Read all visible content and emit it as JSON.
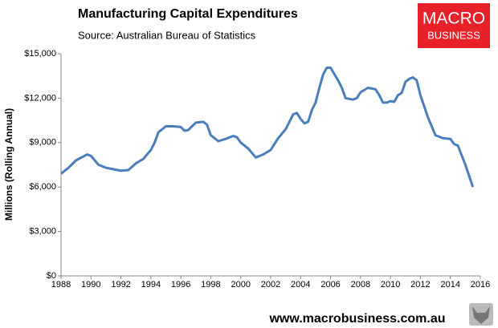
{
  "chart_data": {
    "type": "line",
    "title": "Manufacturing Capital Expenditures",
    "subtitle": "Source: Australian Bureau of Statistics",
    "y_label": "Millions (Rolling Annual)",
    "logo": [
      "MACRO",
      "BUSINESS"
    ],
    "footer": "www.macrobusiness.com.au",
    "x": [
      1988,
      1988.5,
      1989,
      1989.75,
      1990,
      1990.5,
      1991,
      1991.5,
      1992,
      1992.5,
      1993,
      1993.5,
      1994,
      1994.25,
      1994.5,
      1995,
      1995.5,
      1996,
      1996.25,
      1996.5,
      1997,
      1997.5,
      1997.75,
      1998,
      1998.5,
      1999,
      1999.5,
      1999.75,
      2000,
      2000.5,
      2001,
      2001.5,
      2002,
      2002.5,
      2003,
      2003.5,
      2003.75,
      2004,
      2004.25,
      2004.5,
      2004.75,
      2005,
      2005.25,
      2005.5,
      2005.75,
      2006,
      2006.5,
      2006.75,
      2007,
      2007.5,
      2007.75,
      2008,
      2008.5,
      2009,
      2009.25,
      2009.5,
      2009.75,
      2010,
      2010.25,
      2010.5,
      2010.75,
      2011,
      2011.25,
      2011.5,
      2011.75,
      2012,
      2012.5,
      2013,
      2013.5,
      2014,
      2014.25,
      2014.5,
      2015,
      2015.5
    ],
    "series": [
      {
        "name": "Manufacturing Capital Expenditures",
        "color": "#4a7ebb",
        "values": [
          6900,
          7300,
          7800,
          8200,
          8100,
          7500,
          7300,
          7200,
          7100,
          7150,
          7600,
          7900,
          8500,
          9000,
          9700,
          10100,
          10100,
          10050,
          9800,
          9850,
          10350,
          10400,
          10200,
          9500,
          9100,
          9250,
          9450,
          9350,
          9000,
          8600,
          8000,
          8200,
          8500,
          9300,
          9900,
          10900,
          11000,
          10600,
          10300,
          10400,
          11200,
          11700,
          12700,
          13600,
          14050,
          14050,
          13200,
          12700,
          12000,
          11900,
          12000,
          12400,
          12700,
          12600,
          12200,
          11700,
          11700,
          11800,
          11750,
          12200,
          12350,
          13100,
          13300,
          13400,
          13200,
          12200,
          10700,
          9500,
          9300,
          9250,
          8900,
          8800,
          7500,
          6000
        ]
      }
    ],
    "xlim": [
      1988,
      2016
    ],
    "xticks": [
      1988,
      1990,
      1992,
      1994,
      1996,
      1998,
      2000,
      2002,
      2004,
      2006,
      2008,
      2010,
      2012,
      2014,
      2016
    ],
    "ylim": [
      0,
      15000
    ],
    "yticks": [
      {
        "value": 0,
        "label": "$0"
      },
      {
        "value": 3000,
        "label": "$3,000"
      },
      {
        "value": 6000,
        "label": "$6,000"
      },
      {
        "value": 9000,
        "label": "$9,000"
      },
      {
        "value": 12000,
        "label": "$12,000"
      },
      {
        "value": 15000,
        "label": "$15,000"
      }
    ],
    "grid": false
  }
}
